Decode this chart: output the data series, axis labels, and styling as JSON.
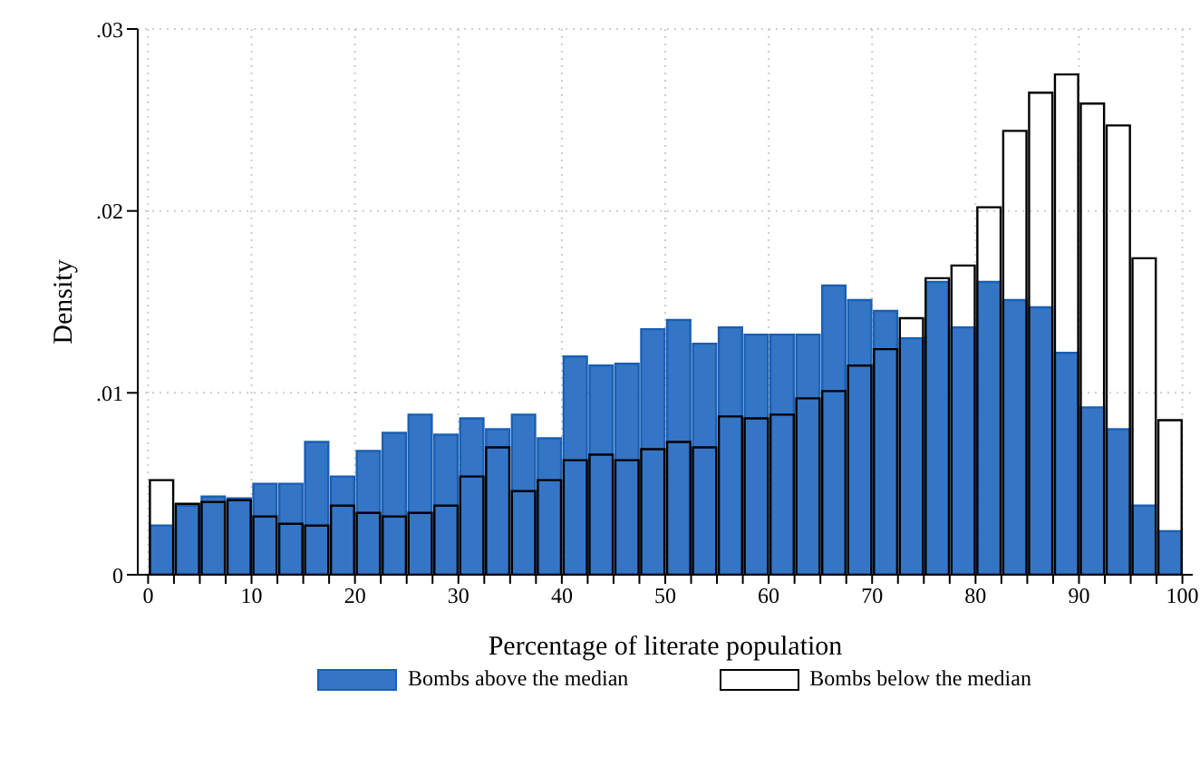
{
  "chart_data": {
    "type": "histogram",
    "xlabel": "Percentage of literate population",
    "ylabel": "Density",
    "bins": [
      0,
      2.5,
      5,
      7.5,
      10,
      12.5,
      15,
      17.5,
      20,
      22.5,
      25,
      27.5,
      30,
      32.5,
      35,
      37.5,
      40,
      42.5,
      45,
      47.5,
      50,
      52.5,
      55,
      57.5,
      60,
      62.5,
      65,
      67.5,
      70,
      72.5,
      75,
      77.5,
      80,
      82.5,
      85,
      87.5,
      90,
      92.5,
      95,
      97.5,
      100
    ],
    "series": [
      {
        "name": "Bombs above the median",
        "color": "#3575c5",
        "values": [
          0.0027,
          0.0038,
          0.0043,
          0.0042,
          0.005,
          0.005,
          0.0073,
          0.0054,
          0.0068,
          0.0078,
          0.0088,
          0.0077,
          0.0086,
          0.008,
          0.0088,
          0.0075,
          0.012,
          0.0115,
          0.0116,
          0.0135,
          0.014,
          0.0127,
          0.0136,
          0.0132,
          0.0132,
          0.0132,
          0.0159,
          0.0151,
          0.0145,
          0.013,
          0.0161,
          0.0136,
          0.0161,
          0.0151,
          0.0147,
          0.0122,
          0.0092,
          0.008,
          0.0038,
          0.0024
        ]
      },
      {
        "name": "Bombs below the median",
        "color": "#000000",
        "values": [
          0.0052,
          0.0039,
          0.004,
          0.0041,
          0.0032,
          0.0028,
          0.0027,
          0.0038,
          0.0034,
          0.0032,
          0.0034,
          0.0038,
          0.0054,
          0.007,
          0.0046,
          0.0052,
          0.0063,
          0.0066,
          0.0063,
          0.0069,
          0.0073,
          0.007,
          0.0087,
          0.0086,
          0.0088,
          0.0097,
          0.0101,
          0.0115,
          0.0124,
          0.0141,
          0.0163,
          0.017,
          0.0202,
          0.0244,
          0.0265,
          0.0275,
          0.0259,
          0.0247,
          0.0174,
          0.0085
        ]
      }
    ],
    "xlim": [
      -1,
      101
    ],
    "xticks": [
      0,
      {
        "value": 2.5,
        "label": null
      },
      {
        "value": 5,
        "label": null
      },
      {
        "value": 7.5,
        "label": null
      },
      10,
      {
        "value": 12.5,
        "label": null
      },
      {
        "value": 15,
        "label": null
      },
      {
        "value": 17.5,
        "label": null
      },
      20,
      {
        "value": 22.5,
        "label": null
      },
      {
        "value": 25,
        "label": null
      },
      {
        "value": 27.5,
        "label": null
      },
      30,
      {
        "value": 32.5,
        "label": null
      },
      {
        "value": 35,
        "label": null
      },
      {
        "value": 37.5,
        "label": null
      },
      40,
      {
        "value": 42.5,
        "label": null
      },
      {
        "value": 45,
        "label": null
      },
      {
        "value": 47.5,
        "label": null
      },
      50,
      {
        "value": 52.5,
        "label": null
      },
      {
        "value": 55,
        "label": null
      },
      {
        "value": 57.5,
        "label": null
      },
      60,
      {
        "value": 62.5,
        "label": null
      },
      {
        "value": 65,
        "label": null
      },
      {
        "value": 67.5,
        "label": null
      },
      70,
      {
        "value": 72.5,
        "label": null
      },
      {
        "value": 75,
        "label": null
      },
      {
        "value": 77.5,
        "label": null
      },
      80,
      {
        "value": 82.5,
        "label": null
      },
      {
        "value": 85,
        "label": null
      },
      {
        "value": 87.5,
        "label": null
      },
      90,
      {
        "value": 92.5,
        "label": null
      },
      {
        "value": 95,
        "label": null
      },
      {
        "value": 97.5,
        "label": null
      },
      100
    ],
    "ylim": [
      0,
      0.03
    ],
    "yticks": [
      0,
      {
        "value": 0.01,
        "label": ".01"
      },
      {
        "value": 0.02,
        "label": ".02"
      },
      {
        "value": 0.03,
        "label": ".03"
      }
    ],
    "grid": true,
    "legend": "bottom"
  }
}
